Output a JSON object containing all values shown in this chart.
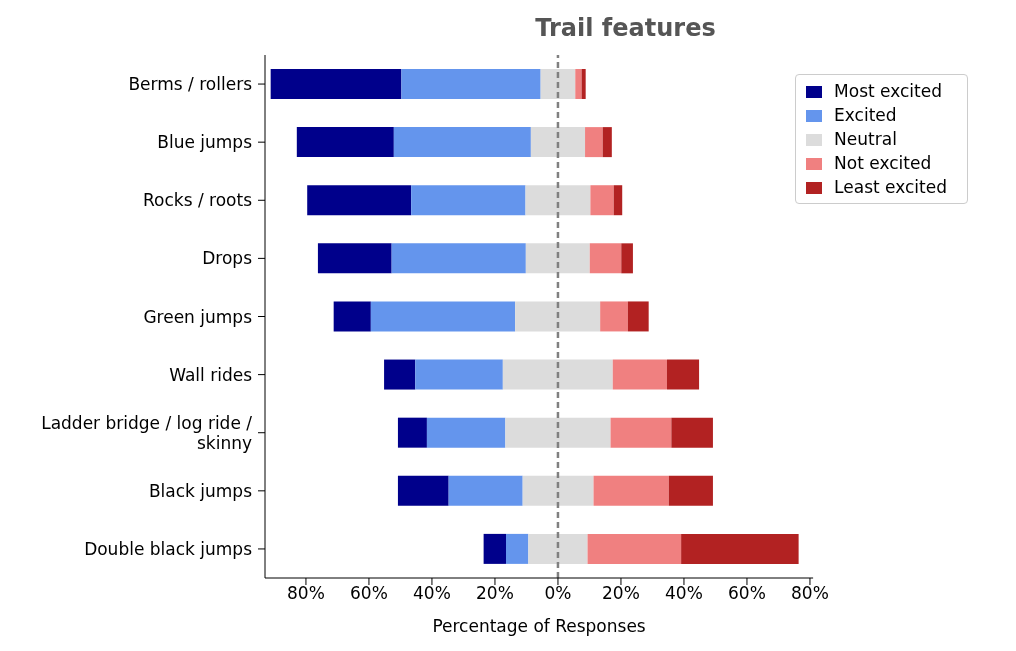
{
  "chart_data": {
    "type": "bar",
    "title": "Trail features",
    "xlabel": "Percentage of Responses",
    "orientation": "horizontal",
    "categories": [
      "Berms / rollers",
      "Blue jumps",
      "Rocks / roots",
      "Drops",
      "Green jumps",
      "Wall rides",
      "Ladder bridge / log ride / skinny",
      "Black jumps",
      "Double black jumps"
    ],
    "series": [
      {
        "name": "Most excited",
        "color": "#00008b",
        "base": [
          -91.2,
          -82.9,
          -79.6,
          -76.2,
          -71.2,
          -55.2,
          -50.8,
          -50.8,
          -23.6
        ],
        "values": [
          41.5,
          30.8,
          33.0,
          23.4,
          11.8,
          9.9,
          9.2,
          16.1,
          7.1
        ]
      },
      {
        "name": "Excited",
        "color": "#6495ed",
        "base": [
          -49.7,
          -52.1,
          -46.6,
          -52.8,
          -59.4,
          -45.3,
          -41.6,
          -34.7,
          -16.5
        ],
        "values": [
          44.2,
          43.5,
          36.3,
          42.6,
          45.8,
          27.8,
          24.9,
          23.5,
          7.1
        ]
      },
      {
        "name": "Neutral",
        "color": "#dcdcdc",
        "base": [
          -5.5,
          -8.6,
          -10.3,
          -10.2,
          -13.6,
          -17.5,
          -16.7,
          -11.2,
          -9.4
        ],
        "values": [
          11.0,
          17.2,
          20.6,
          20.3,
          27.0,
          34.9,
          33.4,
          22.5,
          18.8
        ]
      },
      {
        "name": "Not excited",
        "color": "#f08080",
        "base": [
          5.5,
          8.6,
          10.3,
          10.1,
          13.4,
          17.4,
          16.7,
          11.3,
          9.4
        ],
        "values": [
          2.0,
          5.6,
          7.4,
          10.0,
          8.8,
          17.2,
          19.3,
          23.9,
          29.7
        ]
      },
      {
        "name": "Least excited",
        "color": "#b22222",
        "base": [
          7.5,
          14.2,
          17.7,
          20.1,
          22.2,
          34.6,
          36.0,
          35.2,
          39.1
        ],
        "values": [
          1.3,
          2.9,
          2.7,
          3.7,
          6.6,
          10.2,
          13.2,
          14.0,
          37.3
        ]
      }
    ],
    "xlim": [
      -93,
      81
    ],
    "xticks": [
      {
        "value": -80,
        "label": "80%"
      },
      {
        "value": -60,
        "label": "60%"
      },
      {
        "value": -40,
        "label": "40%"
      },
      {
        "value": -20,
        "label": "20%"
      },
      {
        "value": 0,
        "label": "0%"
      },
      {
        "value": 20,
        "label": "20%"
      },
      {
        "value": 40,
        "label": "40%"
      },
      {
        "value": 60,
        "label": "60%"
      },
      {
        "value": 80,
        "label": "80%"
      }
    ],
    "ref_lines": [
      {
        "axis": "x",
        "value": 0,
        "label": null,
        "color": "#808080",
        "line_style": "dashed"
      }
    ],
    "legend": "top right",
    "grid": false
  }
}
